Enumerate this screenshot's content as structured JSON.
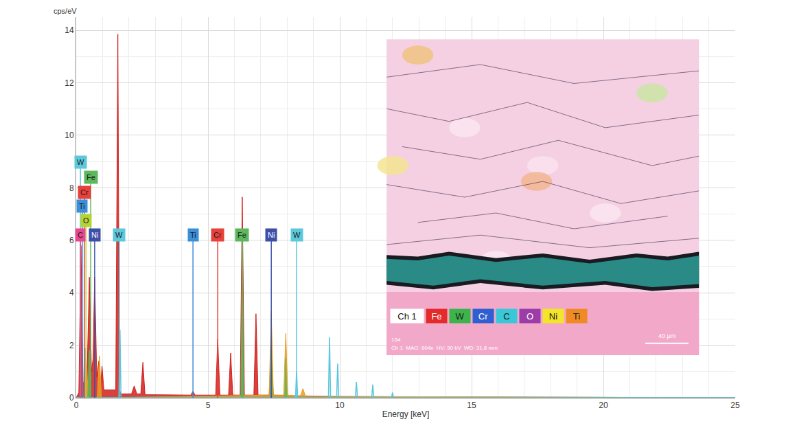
{
  "chart_data": {
    "type": "line",
    "x_label": "Energy [keV]",
    "y_label": "cps/eV",
    "xlim": [
      0,
      25
    ],
    "ylim": [
      0,
      14.5
    ],
    "xticks": [
      0,
      5,
      10,
      15,
      20,
      25
    ],
    "yticks": [
      0,
      2,
      4,
      6,
      8,
      10,
      12,
      14
    ],
    "grid": true,
    "series": [
      {
        "type": "area",
        "color": "#d0201c",
        "x": [
          0,
          0.1,
          0.18,
          0.26,
          0.32,
          0.42,
          0.5,
          0.58,
          0.64,
          0.7,
          0.78,
          0.86,
          0.92,
          0.98,
          1.05,
          1.5,
          1.58,
          1.64,
          1.7,
          2.1,
          2.2,
          2.3,
          2.45,
          2.53,
          2.61,
          4.35,
          4.43,
          4.51,
          5.29,
          5.37,
          5.45,
          5.78,
          5.86,
          5.94,
          6.22,
          6.3,
          6.38,
          6.74,
          6.82,
          6.9,
          7.32,
          7.4,
          7.48,
          8.0,
          10,
          15,
          25
        ],
        "values": [
          0,
          0.2,
          5.8,
          0.6,
          0.5,
          1.2,
          4.6,
          1.0,
          1.5,
          4.6,
          0.8,
          1.4,
          0.4,
          1.2,
          0.3,
          0.3,
          13.85,
          0.3,
          0.15,
          0.15,
          0.45,
          0.15,
          0.15,
          1.35,
          0.12,
          0.1,
          0.25,
          0.1,
          0.1,
          2.25,
          0.1,
          0.1,
          1.7,
          0.1,
          0.1,
          7.65,
          0.1,
          0.1,
          3.2,
          0.1,
          0.1,
          1.6,
          0.1,
          0.08,
          0.05,
          0.03,
          0
        ]
      },
      {
        "type": "area",
        "color": "#e8a020",
        "x": [
          0,
          0.3,
          0.38,
          0.46,
          0.8,
          0.88,
          0.96,
          7.32,
          7.4,
          7.48,
          7.87,
          7.95,
          8.03,
          8.5,
          8.6,
          8.7,
          25
        ],
        "values": [
          0,
          0,
          1.5,
          0,
          0,
          1.6,
          0,
          0.1,
          3.3,
          0.1,
          0.1,
          2.45,
          0.1,
          0.05,
          0.35,
          0.05,
          0
        ]
      },
      {
        "type": "area",
        "color": "#5cb85c",
        "x": [
          0,
          0.44,
          0.5,
          0.56,
          6.25,
          6.3,
          6.35,
          7.36,
          7.4,
          7.44,
          7.91,
          7.95,
          7.99,
          25
        ],
        "values": [
          0,
          0,
          1.8,
          0,
          0,
          6.1,
          0,
          0,
          2.0,
          0,
          0,
          1.5,
          0,
          0
        ]
      },
      {
        "type": "line",
        "color": "#5bc8dc",
        "x": [
          0,
          0.3,
          0.34,
          0.38,
          1.62,
          1.66,
          1.7,
          8.32,
          8.36,
          8.4,
          9.57,
          9.61,
          9.65,
          9.88,
          9.92,
          9.96,
          10.59,
          10.63,
          10.67,
          11.21,
          11.25,
          11.29,
          11.96,
          12.0,
          12.04,
          25
        ],
        "values": [
          0,
          0,
          1.9,
          0,
          0,
          2.6,
          0,
          0,
          1.0,
          0,
          0,
          2.3,
          0,
          0,
          1.3,
          0,
          0,
          0.6,
          0,
          0,
          0.5,
          0,
          0,
          0.2,
          0,
          0
        ]
      }
    ],
    "element_markers": [
      {
        "label": "W",
        "x": 0.16,
        "height": 8.98,
        "color": "#5bc8dc"
      },
      {
        "label": "Fe",
        "x": 0.55,
        "height": 8.4,
        "color": "#5cb85c"
      },
      {
        "label": "Cr",
        "x": 0.31,
        "height": 7.83,
        "color": "#e8413c"
      },
      {
        "label": "Ti",
        "x": 0.23,
        "height": 7.3,
        "color": "#3a8fd8"
      },
      {
        "label": "O",
        "x": 0.37,
        "height": 6.75,
        "color": "#b5d334"
      },
      {
        "label": "C",
        "x": 0.16,
        "height": 6.2,
        "color": "#e8478f"
      },
      {
        "label": "Ni",
        "x": 0.7,
        "height": 6.2,
        "color": "#3d4fa8"
      },
      {
        "label": "W",
        "x": 1.64,
        "height": 6.2,
        "color": "#5bc8dc"
      },
      {
        "label": "Ti",
        "x": 4.43,
        "height": 6.2,
        "color": "#3a8fd8"
      },
      {
        "label": "Cr",
        "x": 5.37,
        "height": 6.2,
        "color": "#e8413c"
      },
      {
        "label": "Fe",
        "x": 6.3,
        "height": 6.2,
        "color": "#5cb85c"
      },
      {
        "label": "Ni",
        "x": 7.4,
        "height": 6.2,
        "color": "#3d4fa8"
      },
      {
        "label": "W",
        "x": 8.36,
        "height": 6.2,
        "color": "#5bc8dc"
      }
    ]
  },
  "inset": {
    "legend_title": "Ch 1",
    "legend_items": [
      {
        "label": "Fe",
        "color": "#e32b2b"
      },
      {
        "label": "W",
        "color": "#3cb44b"
      },
      {
        "label": "Cr",
        "color": "#2f5fd0"
      },
      {
        "label": "C",
        "color": "#38c8d8"
      },
      {
        "label": "O",
        "color": "#9b3ca8"
      },
      {
        "label": "Ni",
        "color": "#f2e52a"
      },
      {
        "label": "Ti",
        "color": "#f08a24"
      }
    ],
    "image_number": "154",
    "caption": "Ch 1  MAG: 604x  HV: 30 kV  WD: 31.8 mm",
    "scale_bar": "40 µm"
  }
}
